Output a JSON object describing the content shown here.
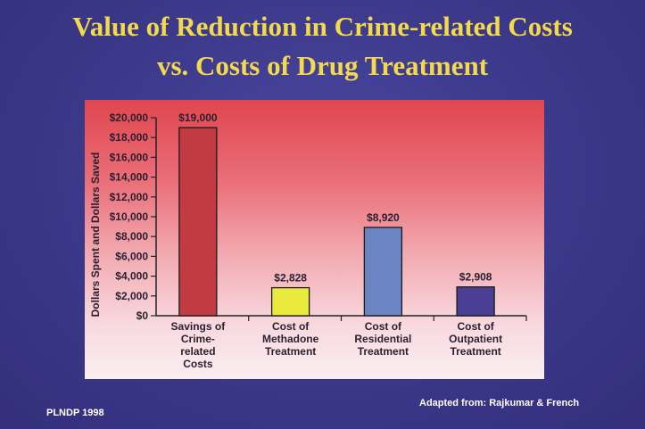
{
  "slide": {
    "title_line1": "Value of Reduction in Crime-related Costs",
    "title_line2": "vs. Costs of Drug Treatment",
    "footer_left": "PLNDP 1998",
    "footer_right": "Adapted from: Rajkumar & French"
  },
  "chart_data": {
    "type": "bar",
    "ylabel": "Dollars Spent and Dollars Saved",
    "ylim": [
      0,
      20000
    ],
    "yticks": [
      0,
      2000,
      4000,
      6000,
      8000,
      10000,
      12000,
      14000,
      16000,
      18000,
      20000
    ],
    "ytick_labels": [
      "$0",
      "$2,000",
      "$4,000",
      "$6,000",
      "$8,000",
      "$10,000",
      "$12,000",
      "$14,000",
      "$16,000",
      "$18,000",
      "$20,000"
    ],
    "categories": [
      [
        "Savings of",
        "Crime-",
        "related",
        "Costs"
      ],
      [
        "Cost of",
        "Methadone",
        "Treatment"
      ],
      [
        "Cost of",
        "Residential",
        "Treatment"
      ],
      [
        "Cost of",
        "Outpatient",
        "Treatment"
      ]
    ],
    "values": [
      19000,
      2828,
      8920,
      2908
    ],
    "data_labels": [
      "$19,000",
      "$2,828",
      "$8,920",
      "$2,908"
    ],
    "colors": [
      "#c23a42",
      "#eaea3e",
      "#6b84c2",
      "#4b3f95"
    ],
    "grid": false,
    "legend": "none"
  }
}
